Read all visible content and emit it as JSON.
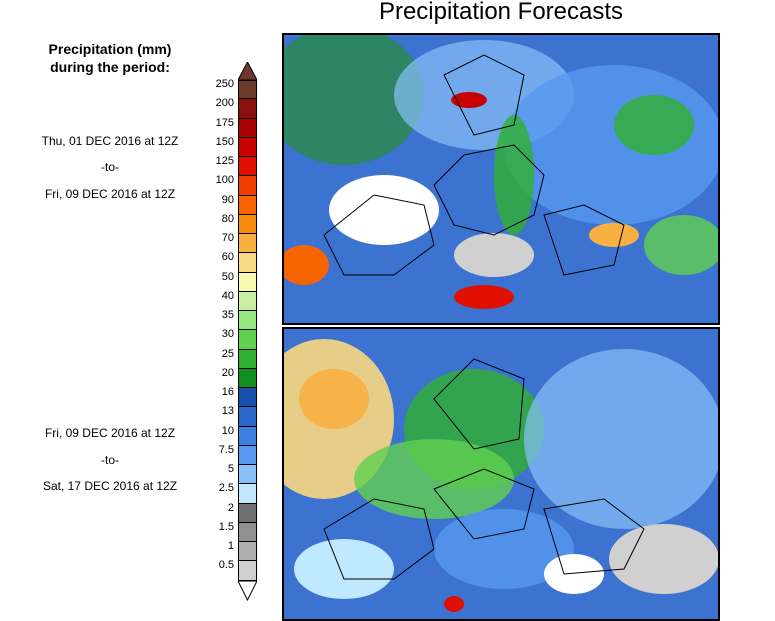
{
  "title": "Precipitation Forecasts",
  "legend": {
    "heading_line1": "Precipitation (mm)",
    "heading_line2": "during the period:",
    "levels": [
      {
        "label": "250",
        "color": "#6b3a2a"
      },
      {
        "label": "200",
        "color": "#8b1010"
      },
      {
        "label": "175",
        "color": "#a80000"
      },
      {
        "label": "150",
        "color": "#c80000"
      },
      {
        "label": "125",
        "color": "#e01000"
      },
      {
        "label": "100",
        "color": "#f03c00"
      },
      {
        "label": "90",
        "color": "#f86400"
      },
      {
        "label": "80",
        "color": "#f88c10"
      },
      {
        "label": "70",
        "color": "#f8b040"
      },
      {
        "label": "60",
        "color": "#f8d880"
      },
      {
        "label": "50",
        "color": "#f8f8b0"
      },
      {
        "label": "40",
        "color": "#c8f0a0"
      },
      {
        "label": "35",
        "color": "#98e880"
      },
      {
        "label": "30",
        "color": "#60d050"
      },
      {
        "label": "25",
        "color": "#30b030"
      },
      {
        "label": "20",
        "color": "#109020"
      },
      {
        "label": "16",
        "color": "#1850b0"
      },
      {
        "label": "13",
        "color": "#2868c8"
      },
      {
        "label": "10",
        "color": "#3c80e0"
      },
      {
        "label": "7.5",
        "color": "#5898f0"
      },
      {
        "label": "5",
        "color": "#88c0f8"
      },
      {
        "label": "2.5",
        "color": "#c0e8ff"
      },
      {
        "label": "2",
        "color": "#707070"
      },
      {
        "label": "1.5",
        "color": "#909090"
      },
      {
        "label": "1",
        "color": "#b0b0b0"
      },
      {
        "label": "0.5",
        "color": "#d0d0d0"
      }
    ],
    "top_arrow_color": "#6b3a2a",
    "bottom_arrow_color": "#ffffff"
  },
  "periods": [
    {
      "start": "Thu, 01 DEC 2016 at 12Z",
      "sep": "-to-",
      "end": "Fri, 09 DEC 2016 at 12Z"
    },
    {
      "start": "Fri, 09 DEC 2016 at 12Z",
      "sep": "-to-",
      "end": "Sat, 17 DEC 2016 at 12Z"
    }
  ]
}
